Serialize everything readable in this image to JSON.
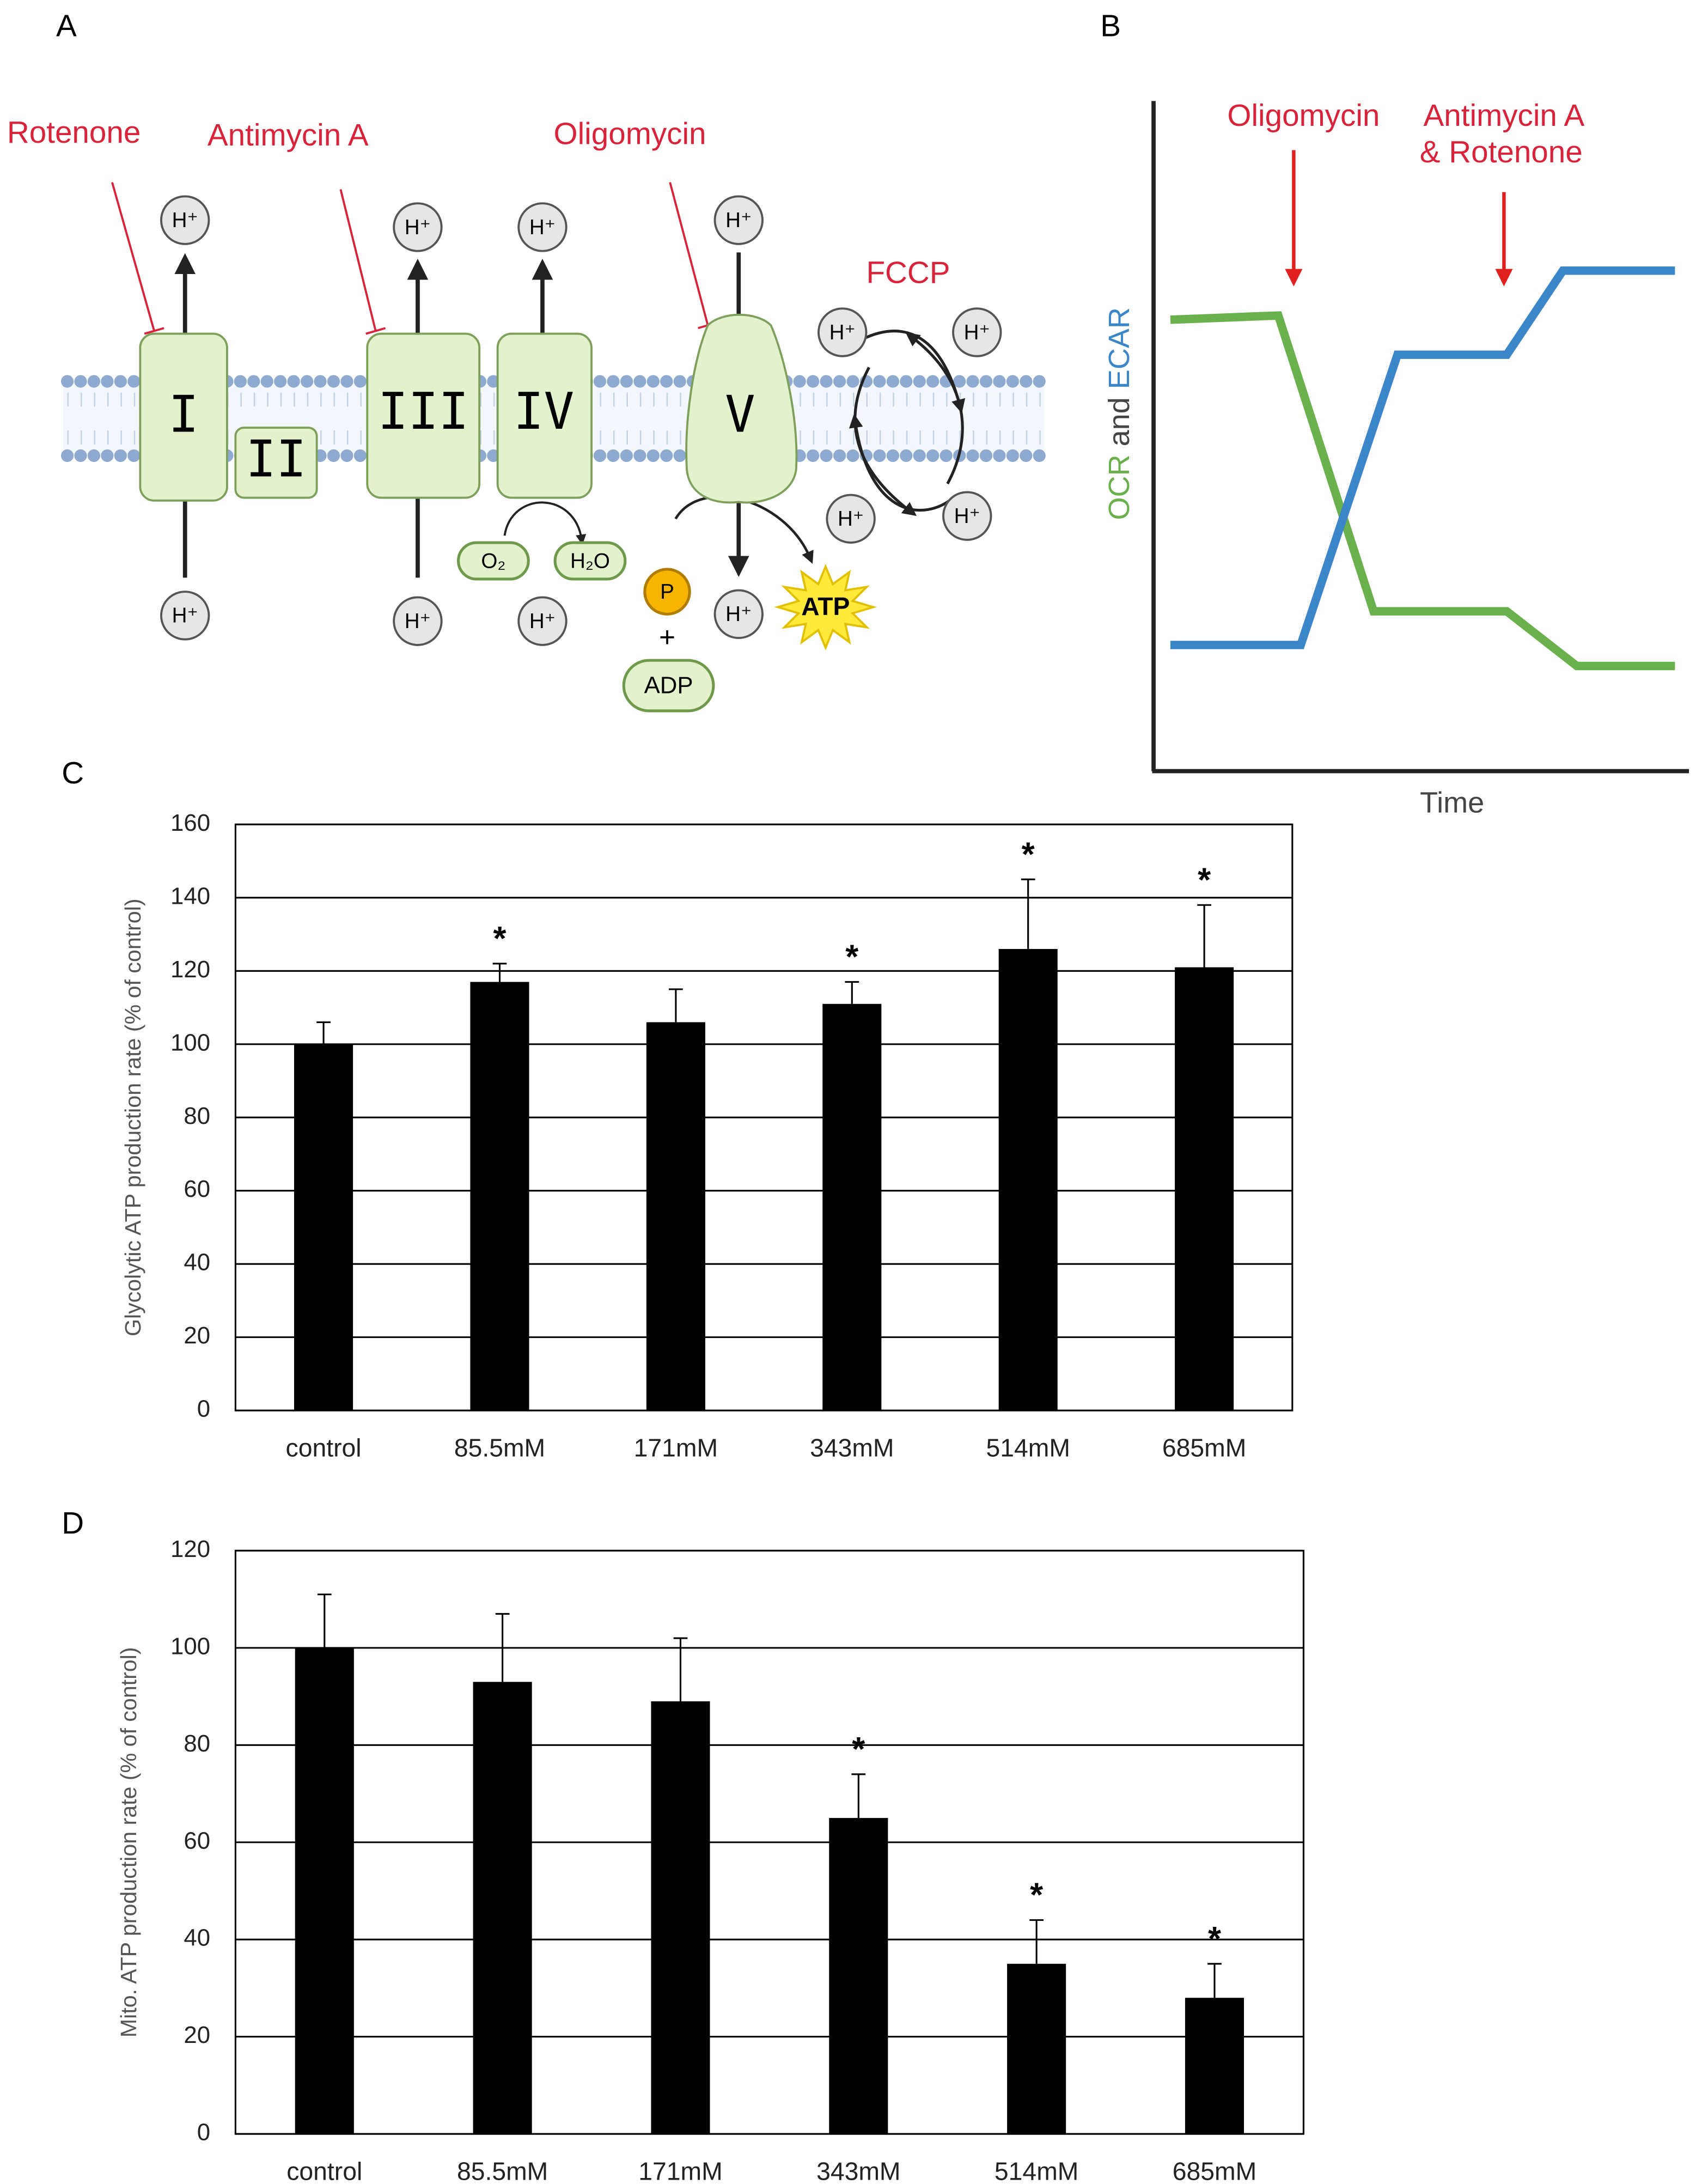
{
  "panel_labels": [
    "A",
    "B",
    "C",
    "D"
  ],
  "diagram": {
    "inhibitors": {
      "rotenone": "Rotenone",
      "antimycin": "Antimycin A",
      "oligomycin": "Oligomycin",
      "fccp": "FCCP"
    },
    "complexes": [
      "I",
      "II",
      "III",
      "IV",
      "V"
    ],
    "proton": "H⁺",
    "oxygen": "O₂",
    "water": "H₂O",
    "phosphate": "P",
    "plus": "+",
    "adp": "ADP",
    "atp": "ATP"
  },
  "schematic": {
    "ylabel_parts": [
      "OCR",
      "and",
      "ECAR"
    ],
    "xlabel": "Time",
    "injection_1": "Oligomycin",
    "injection_2": [
      "Antimycin A",
      "& Rotenone"
    ],
    "ocr_color": "#6ab04c",
    "ecar_color": "#3b86c8"
  },
  "chart_data": [
    {
      "type": "bar",
      "ylabel": "Glycolytic ATP production rate (% of control)",
      "categories": [
        "control",
        "85.5mM",
        "171mM",
        "343mM",
        "514mM",
        "685mM"
      ],
      "values": [
        100,
        117,
        106,
        111,
        126,
        121
      ],
      "errors": [
        6,
        5,
        9,
        6,
        19,
        17
      ],
      "significance": [
        null,
        "*",
        null,
        "*",
        "*",
        "*"
      ],
      "color": "#000000",
      "ylim": [
        0,
        160
      ],
      "yticks": [
        0,
        20,
        40,
        60,
        80,
        100,
        120,
        140,
        160
      ],
      "grid": true
    },
    {
      "type": "bar",
      "ylabel": "Mito. ATP production rate (% of control)",
      "categories": [
        "control",
        "85.5mM",
        "171mM",
        "343mM",
        "514mM",
        "685mM"
      ],
      "values": [
        100,
        93,
        89,
        65,
        35,
        28
      ],
      "errors": [
        11,
        14,
        13,
        9,
        9,
        7
      ],
      "significance": [
        null,
        null,
        null,
        "*",
        "*",
        "*"
      ],
      "color": "#000000",
      "ylim": [
        0,
        120
      ],
      "yticks": [
        0,
        20,
        40,
        60,
        80,
        100,
        120
      ],
      "grid": true
    }
  ]
}
